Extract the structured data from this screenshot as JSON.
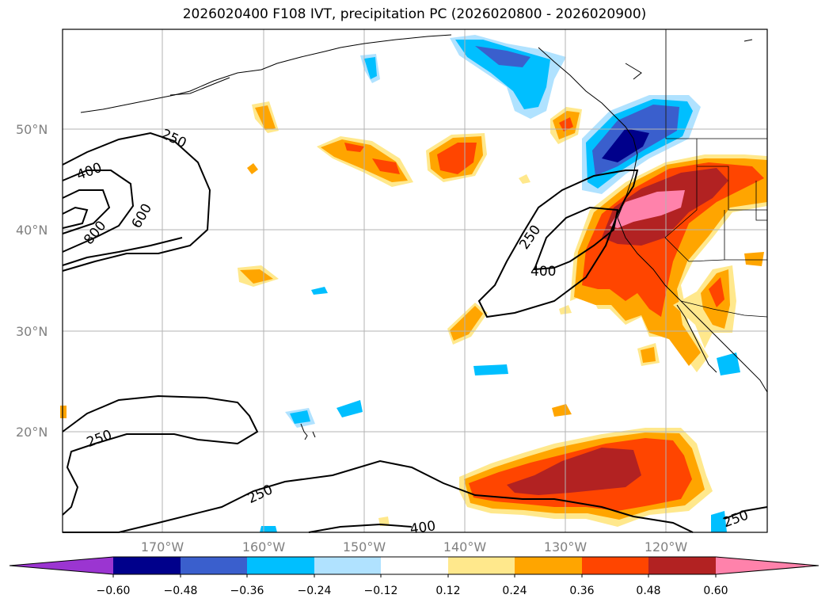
{
  "title": "2026020400 F108 IVT, precipitation PC (2026020800 - 2026020900)",
  "lat_labels": [
    "50°N",
    "40°N",
    "30°N",
    "20°N"
  ],
  "lon_labels": [
    "170°W",
    "160°W",
    "150°W",
    "140°W",
    "130°W",
    "120°W"
  ],
  "contour_labels": [
    "250",
    "400",
    "800",
    "600",
    "250",
    "400",
    "250",
    "250",
    "400",
    "250"
  ],
  "colorbar": {
    "ticks": [
      "−0.60",
      "−0.48",
      "−0.36",
      "−0.24",
      "−0.12",
      "0.12",
      "0.24",
      "0.36",
      "0.48",
      "0.60"
    ],
    "colors": [
      "#9b35d1",
      "#00008b",
      "#3a5fcd",
      "#00bfff",
      "#b0e2ff",
      "#ffffff",
      "#ffe88c",
      "#ffa500",
      "#ff4500",
      "#b22222",
      "#ff82ab"
    ]
  }
}
